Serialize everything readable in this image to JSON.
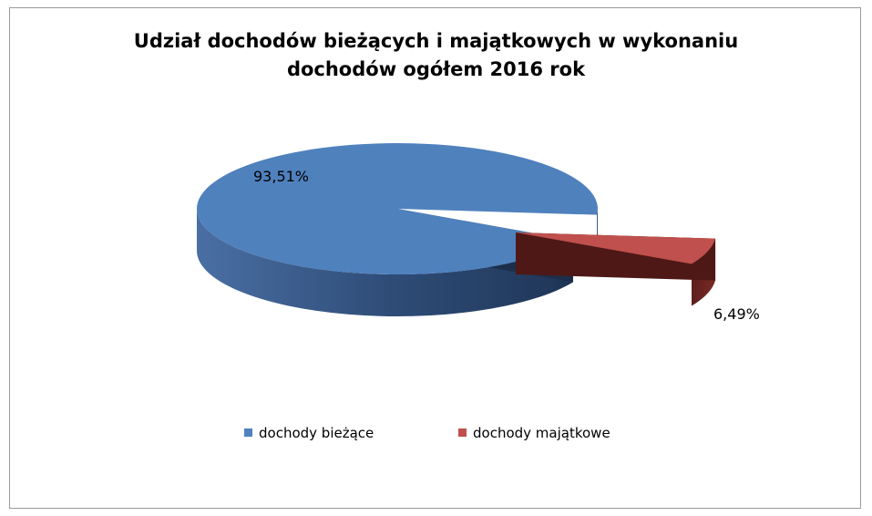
{
  "chart_data": {
    "type": "pie",
    "title_lines": [
      "Udział dochodów  bieżących i majątkowych  w wykonaniu",
      "dochodów  ogółem 2016 rok"
    ],
    "title": "Udział dochodów  bieżących i majątkowych  w wykonaniu dochodów  ogółem 2016 rok",
    "categories": [
      "dochody bieżące",
      "dochody majątkowe"
    ],
    "values": [
      93.51,
      6.49
    ],
    "data_labels": [
      "93,51%",
      "6,49%"
    ],
    "colors": [
      "#4f81bd",
      "#c0504d"
    ],
    "legend_position": "bottom",
    "style": "3d-exploded"
  }
}
